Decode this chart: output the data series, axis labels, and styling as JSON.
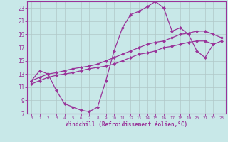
{
  "xlabel": "Windchill (Refroidissement éolien,°C)",
  "bg_color": "#c8e8e8",
  "grid_color": "#b0c8c8",
  "line_color": "#993399",
  "marker": "D",
  "markersize": 2.0,
  "linewidth": 0.9,
  "xlim": [
    -0.5,
    23.5
  ],
  "ylim": [
    7,
    24
  ],
  "yticks": [
    7,
    9,
    11,
    13,
    15,
    17,
    19,
    21,
    23
  ],
  "xticks": [
    0,
    1,
    2,
    3,
    4,
    5,
    6,
    7,
    8,
    9,
    10,
    11,
    12,
    13,
    14,
    15,
    16,
    17,
    18,
    19,
    20,
    21,
    22,
    23
  ],
  "curve1_x": [
    0,
    1,
    2,
    3,
    4,
    5,
    6,
    7,
    8,
    9,
    10,
    11,
    12,
    13,
    14,
    15,
    16,
    17,
    18,
    19,
    20,
    21,
    22
  ],
  "curve1_y": [
    12,
    13.5,
    13,
    10.5,
    8.5,
    8.0,
    7.5,
    7.3,
    8.0,
    12.0,
    16.5,
    20.0,
    22.0,
    22.5,
    23.2,
    24.0,
    23.0,
    19.5,
    20.0,
    19.0,
    16.5,
    15.5,
    17.5
  ],
  "curve2_x": [
    0,
    1,
    2,
    3,
    4,
    5,
    6,
    7,
    8,
    9,
    10,
    11,
    12,
    13,
    14,
    15,
    16,
    17,
    18,
    19,
    20,
    21,
    22,
    23
  ],
  "curve2_y": [
    12.0,
    12.5,
    13.0,
    13.2,
    13.5,
    13.8,
    14.0,
    14.2,
    14.5,
    15.0,
    15.5,
    16.0,
    16.5,
    17.0,
    17.5,
    17.8,
    18.0,
    18.5,
    19.0,
    19.2,
    19.5,
    19.5,
    19.0,
    18.5
  ],
  "curve3_x": [
    0,
    1,
    2,
    3,
    4,
    5,
    6,
    7,
    8,
    9,
    10,
    11,
    12,
    13,
    14,
    15,
    16,
    17,
    18,
    19,
    20,
    21,
    22,
    23
  ],
  "curve3_y": [
    11.5,
    12.0,
    12.5,
    12.8,
    13.0,
    13.2,
    13.5,
    13.8,
    14.0,
    14.2,
    14.5,
    15.0,
    15.5,
    16.0,
    16.2,
    16.5,
    17.0,
    17.2,
    17.5,
    17.8,
    18.0,
    18.0,
    17.5,
    18.0
  ]
}
